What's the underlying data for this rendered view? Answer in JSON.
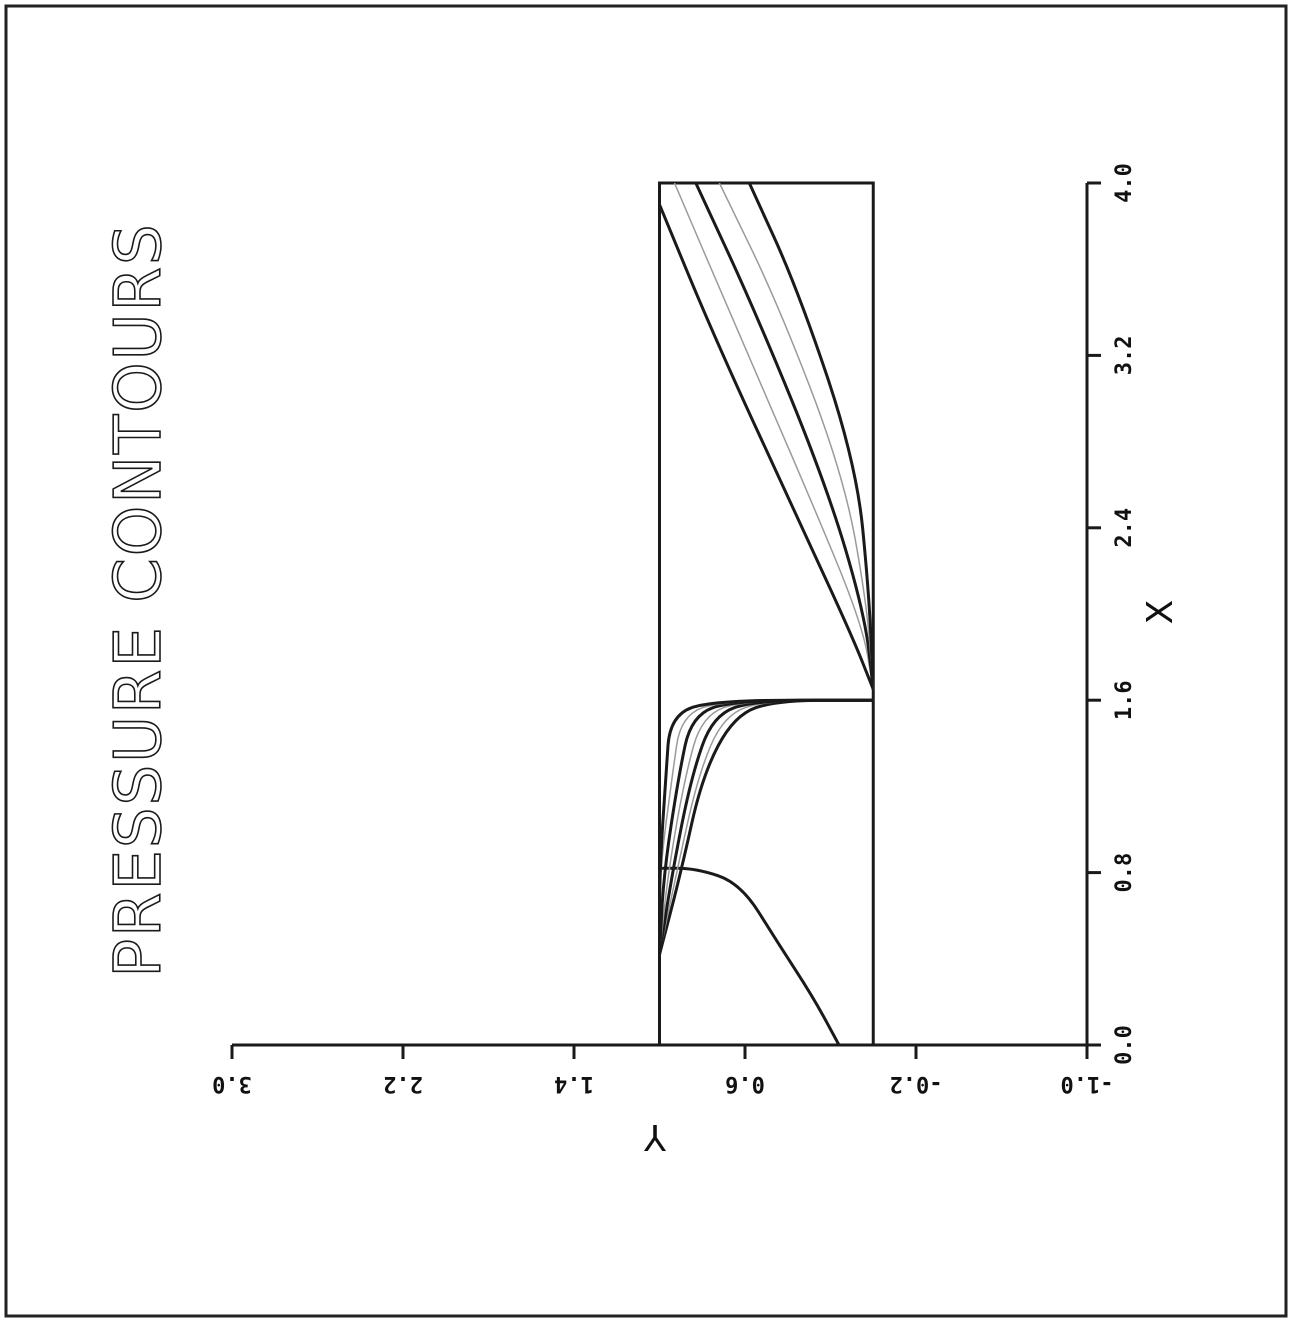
{
  "chart_data": {
    "type": "contour",
    "title": "PRESSURE CONTOURS",
    "xlabel": "X",
    "ylabel": "Y",
    "x_ticks": [
      "0.0",
      "0.8",
      "1.6",
      "2.4",
      "3.2",
      "4.0"
    ],
    "y_ticks": [
      "-1.0",
      "-0.2",
      "0.6",
      "1.4",
      "2.2",
      "3.0"
    ],
    "xlim": [
      0.0,
      4.0
    ],
    "ylim": [
      -1.0,
      3.0
    ],
    "domain": {
      "x": [
        0.0,
        4.0
      ],
      "y": [
        0.0,
        1.0
      ]
    },
    "grid": false,
    "orientation": "rotated 90 degrees",
    "line_color": "#1a1a1a",
    "faint_color": "#9a9a9a",
    "contours": [
      {
        "weight": "dark",
        "points": [
          [
            0.0,
            0.16
          ],
          [
            0.22,
            0.28
          ],
          [
            0.48,
            0.45
          ],
          [
            0.75,
            0.62
          ],
          [
            0.82,
            0.83
          ],
          [
            0.82,
            1.0
          ]
        ]
      },
      {
        "weight": "dark",
        "points": [
          [
            0.42,
            1.0
          ],
          [
            0.8,
            0.9
          ],
          [
            1.25,
            0.8
          ],
          [
            1.53,
            0.65
          ],
          [
            1.6,
            0.45
          ],
          [
            1.6,
            0.0
          ]
        ]
      },
      {
        "weight": "light",
        "points": [
          [
            0.42,
            1.0
          ],
          [
            0.8,
            0.92
          ],
          [
            1.25,
            0.82
          ],
          [
            1.53,
            0.7
          ],
          [
            1.6,
            0.5
          ],
          [
            1.6,
            0.0
          ]
        ]
      },
      {
        "weight": "dark",
        "points": [
          [
            0.42,
            1.0
          ],
          [
            0.8,
            0.94
          ],
          [
            1.25,
            0.85
          ],
          [
            1.53,
            0.75
          ],
          [
            1.6,
            0.55
          ],
          [
            1.6,
            0.0
          ]
        ]
      },
      {
        "weight": "light",
        "points": [
          [
            0.42,
            1.0
          ],
          [
            0.8,
            0.96
          ],
          [
            1.25,
            0.88
          ],
          [
            1.53,
            0.8
          ],
          [
            1.6,
            0.6
          ],
          [
            1.6,
            0.0
          ]
        ]
      },
      {
        "weight": "dark",
        "points": [
          [
            0.42,
            1.0
          ],
          [
            0.8,
            0.98
          ],
          [
            1.25,
            0.91
          ],
          [
            1.53,
            0.85
          ],
          [
            1.6,
            0.65
          ],
          [
            1.6,
            0.0
          ]
        ]
      },
      {
        "weight": "light",
        "points": [
          [
            0.42,
            1.0
          ],
          [
            0.8,
            1.0
          ],
          [
            1.25,
            0.94
          ],
          [
            1.53,
            0.9
          ],
          [
            1.6,
            0.7
          ],
          [
            1.6,
            0.0
          ]
        ]
      },
      {
        "weight": "dark",
        "points": [
          [
            0.42,
            1.0
          ],
          [
            0.8,
            1.0
          ],
          [
            1.25,
            0.97
          ],
          [
            1.53,
            0.95
          ],
          [
            1.6,
            0.75
          ],
          [
            1.6,
            0.0
          ]
        ]
      },
      {
        "weight": "dark",
        "points": [
          [
            1.65,
            0.0
          ],
          [
            1.9,
            0.1
          ],
          [
            2.5,
            0.38
          ],
          [
            3.3,
            0.75
          ],
          [
            3.9,
            1.0
          ]
        ]
      },
      {
        "weight": "light",
        "points": [
          [
            1.65,
            0.0
          ],
          [
            1.95,
            0.05
          ],
          [
            2.55,
            0.3
          ],
          [
            3.35,
            0.65
          ],
          [
            4.0,
            0.93
          ]
        ]
      },
      {
        "weight": "dark",
        "points": [
          [
            1.65,
            0.0
          ],
          [
            2.0,
            0.04
          ],
          [
            2.6,
            0.22
          ],
          [
            3.4,
            0.55
          ],
          [
            4.0,
            0.83
          ]
        ]
      },
      {
        "weight": "light",
        "points": [
          [
            1.65,
            0.0
          ],
          [
            2.05,
            0.03
          ],
          [
            2.65,
            0.14
          ],
          [
            3.45,
            0.45
          ],
          [
            4.0,
            0.72
          ]
        ]
      },
      {
        "weight": "dark",
        "points": [
          [
            1.65,
            0.0
          ],
          [
            2.1,
            0.02
          ],
          [
            2.7,
            0.08
          ],
          [
            3.5,
            0.35
          ],
          [
            4.0,
            0.58
          ]
        ]
      }
    ]
  }
}
